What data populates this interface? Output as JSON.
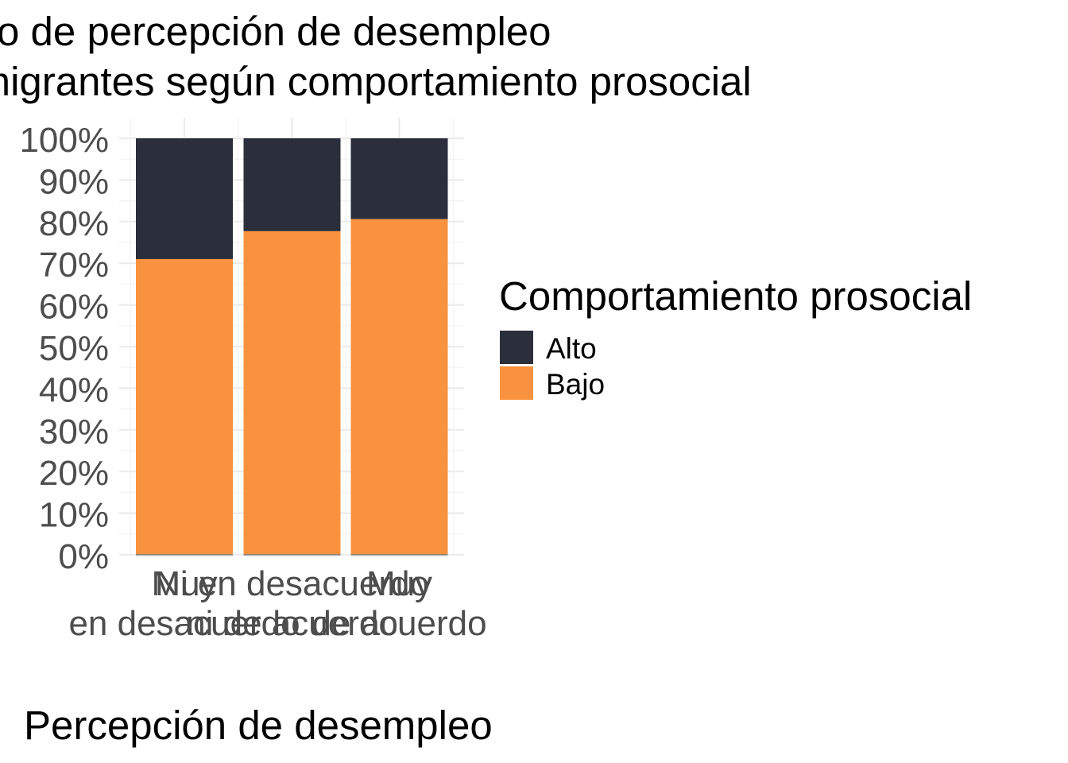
{
  "chart_data": {
    "type": "bar",
    "stacked": true,
    "title_lines": [
      "Gráfico de percepción de desempleo",
      "en inmigrantes según comportamiento prosocial"
    ],
    "xlabel": "Percepción de desempleo",
    "ylabel": "",
    "categories": [
      [
        "Muy",
        "en desacuerdo"
      ],
      [
        "Ni en desacuerdo",
        "ni de acuerdo"
      ],
      [
        "Muy",
        "de acuerdo"
      ]
    ],
    "series": [
      {
        "name": "Bajo",
        "values": [
          0.71,
          0.777,
          0.806
        ],
        "color": "#F9923E"
      },
      {
        "name": "Alto",
        "values": [
          0.29,
          0.223,
          0.194
        ],
        "color": "#2B2F3B"
      }
    ],
    "ylim": [
      0,
      1
    ],
    "yticks": [
      0,
      0.1,
      0.2,
      0.3,
      0.4,
      0.5,
      0.6,
      0.7,
      0.8,
      0.9,
      1.0
    ],
    "ytick_labels": [
      "0%",
      "10%",
      "20%",
      "30%",
      "40%",
      "50%",
      "60%",
      "70%",
      "80%",
      "90%",
      "100%"
    ],
    "grid": true,
    "legend": {
      "title": "Comportamiento prosocial",
      "placement": "right",
      "entries": [
        {
          "label": "Alto",
          "color": "#2B2F3B"
        },
        {
          "label": "Bajo",
          "color": "#F9923E"
        }
      ]
    }
  }
}
